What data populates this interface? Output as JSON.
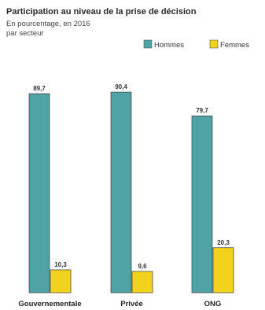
{
  "chart_data": {
    "type": "bar",
    "title": "Participation au niveau de la prise de décision",
    "subtitle_lines": [
      "En pourcentage, en 2016",
      "par secteur"
    ],
    "categories": [
      "Gouvernementale",
      "Privée",
      "ONG"
    ],
    "series": [
      {
        "name": "Hommes",
        "color": "#4fa3a5",
        "values": [
          89.7,
          90.4,
          79.7
        ],
        "value_labels": [
          "89,7",
          "90,4",
          "79,7"
        ]
      },
      {
        "name": "Femmes",
        "color": "#f2d21c",
        "values": [
          10.3,
          9.6,
          20.3
        ],
        "value_labels": [
          "10,3",
          "9,6",
          "20,3"
        ]
      }
    ],
    "ylim": [
      0,
      100
    ],
    "grid": false,
    "legend_position": "top-right"
  }
}
